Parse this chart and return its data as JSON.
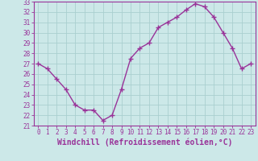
{
  "x": [
    0,
    1,
    2,
    3,
    4,
    5,
    6,
    7,
    8,
    9,
    10,
    11,
    12,
    13,
    14,
    15,
    16,
    17,
    18,
    19,
    20,
    21,
    22,
    23
  ],
  "y": [
    27.0,
    26.5,
    25.5,
    24.5,
    23.0,
    22.5,
    22.5,
    21.5,
    22.0,
    24.5,
    27.5,
    28.5,
    29.0,
    30.5,
    31.0,
    31.5,
    32.2,
    32.8,
    32.5,
    31.5,
    30.0,
    28.5,
    26.5,
    27.0
  ],
  "line_color": "#993399",
  "marker": "+",
  "marker_size": 4,
  "background_color": "#cce8e8",
  "grid_color": "#aacfcf",
  "tick_label_color": "#993399",
  "xlabel": "Windchill (Refroidissement éolien,°C)",
  "xlabel_color": "#993399",
  "ylim": [
    21,
    33
  ],
  "xlim": [
    -0.5,
    23.5
  ],
  "yticks": [
    21,
    22,
    23,
    24,
    25,
    26,
    27,
    28,
    29,
    30,
    31,
    32,
    33
  ],
  "xticks": [
    0,
    1,
    2,
    3,
    4,
    5,
    6,
    7,
    8,
    9,
    10,
    11,
    12,
    13,
    14,
    15,
    16,
    17,
    18,
    19,
    20,
    21,
    22,
    23
  ],
  "xtick_labels": [
    "0",
    "1",
    "2",
    "3",
    "4",
    "5",
    "6",
    "7",
    "8",
    "9",
    "10",
    "11",
    "12",
    "13",
    "14",
    "15",
    "16",
    "17",
    "18",
    "19",
    "20",
    "21",
    "22",
    "23"
  ],
  "ytick_labels": [
    "21",
    "22",
    "23",
    "24",
    "25",
    "26",
    "27",
    "28",
    "29",
    "30",
    "31",
    "32",
    "33"
  ],
  "spine_color": "#993399",
  "font_size_ticks": 5.5,
  "font_size_xlabel": 7,
  "linewidth": 1.0,
  "markeredgewidth": 1.0
}
